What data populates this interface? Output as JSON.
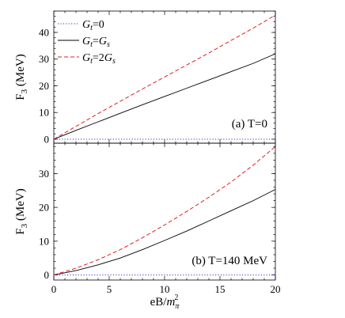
{
  "chart_data": [
    {
      "type": "line",
      "panel_label": "(a) T=0",
      "ylabel": "F",
      "ylabel_sub": "3",
      "ylabel_unit": "(MeV)",
      "xlim": [
        0,
        20
      ],
      "ylim": [
        -1.5,
        48
      ],
      "yticks": [
        0,
        10,
        20,
        30,
        40
      ],
      "legend": "top-left",
      "series": [
        {
          "name": "G_t=0",
          "legend_main": "G",
          "legend_sub": "t",
          "legend_rest": "=0",
          "color": "#3333cc",
          "dash": "1.2,2.2",
          "x": [
            0,
            20
          ],
          "y": [
            0,
            0
          ]
        },
        {
          "name": "G_t=G_s",
          "legend_main": "G",
          "legend_sub": "t",
          "legend_rest": "=G",
          "legend_rest_sub": "s",
          "color": "#000000",
          "dash": "",
          "x": [
            0,
            2,
            4,
            6,
            8,
            10,
            12,
            14,
            16,
            18,
            20
          ],
          "y": [
            0,
            3.3,
            6.5,
            9.7,
            12.9,
            16.0,
            19.1,
            22.2,
            25.3,
            28.4,
            32.0
          ]
        },
        {
          "name": "G_t=2G_s",
          "legend_main": "G",
          "legend_sub": "t",
          "legend_rest": "=2G",
          "legend_rest_sub": "s",
          "color": "#e02020",
          "dash": "5,3",
          "x": [
            0,
            2,
            4,
            6,
            8,
            10,
            12,
            14,
            16,
            18,
            20
          ],
          "y": [
            0,
            4.8,
            9.6,
            14.2,
            18.8,
            23.3,
            27.8,
            32.3,
            37.0,
            41.6,
            46.5
          ]
        }
      ]
    },
    {
      "type": "line",
      "panel_label": "(b) T=140 MeV",
      "ylabel": "F",
      "ylabel_sub": "3",
      "ylabel_unit": "(MeV)",
      "xlabel": "eB/m",
      "xlabel_sub": "π",
      "xlabel_sup": "2",
      "xlim": [
        0,
        20
      ],
      "xticks": [
        0,
        5,
        10,
        15,
        20
      ],
      "ylim": [
        -1.5,
        39
      ],
      "yticks": [
        0,
        10,
        20,
        30
      ],
      "series": [
        {
          "name": "G_t=0",
          "color": "#3333cc",
          "dash": "1.2,2.2",
          "x": [
            0,
            20
          ],
          "y": [
            0,
            0
          ]
        },
        {
          "name": "G_t=G_s",
          "color": "#000000",
          "dash": "",
          "x": [
            0,
            2,
            4,
            6,
            8,
            10,
            12,
            14,
            16,
            18,
            20
          ],
          "y": [
            0,
            1.3,
            3.0,
            5.0,
            7.5,
            10.2,
            13.0,
            16.0,
            19.0,
            22.0,
            25.3
          ]
        },
        {
          "name": "G_t=2G_s",
          "color": "#e02020",
          "dash": "5,3",
          "x": [
            0,
            2,
            4,
            6,
            8,
            10,
            12,
            14,
            16,
            18,
            20
          ],
          "y": [
            0,
            2.0,
            4.5,
            7.5,
            11.0,
            14.8,
            18.8,
            23.0,
            27.5,
            32.5,
            38.0
          ]
        }
      ]
    }
  ]
}
